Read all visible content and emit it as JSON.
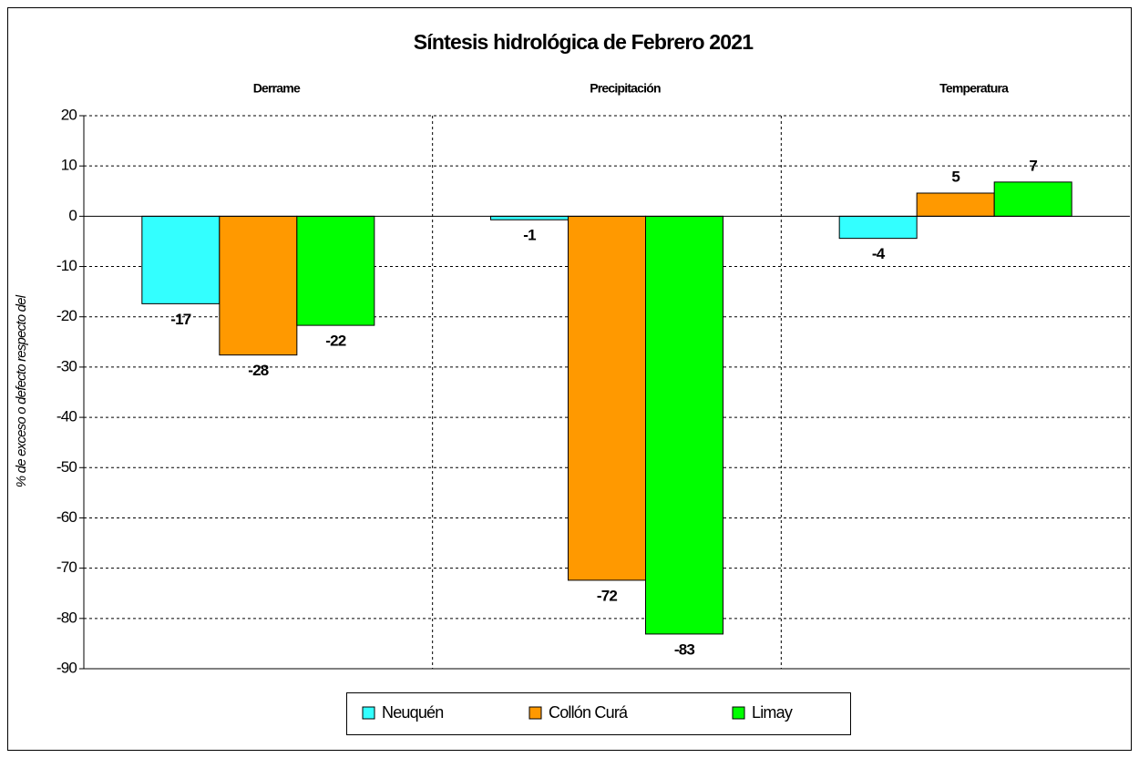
{
  "chart_data": {
    "type": "bar",
    "title": "Síntesis hidrológica de Febrero 2021",
    "y_label": "% de exceso o defecto respecto del",
    "categories": [
      "Derrame",
      "Precipitación",
      "Temperatura"
    ],
    "series": [
      {
        "name": "Neuquén",
        "color": "#33ffff",
        "label_color": "#000000",
        "values": [
          -17.4,
          -0.7,
          -4.4
        ],
        "value_labels": [
          "-17",
          "-1",
          "-4"
        ]
      },
      {
        "name": "Collón Curá",
        "color": "#ff9900",
        "label_color": "#1f4d1f",
        "values": [
          -27.6,
          -72.4,
          4.6
        ],
        "value_labels": [
          "-28",
          "-72",
          "5"
        ]
      },
      {
        "name": "Limay",
        "color": "#00ff00",
        "label_color": "#000000",
        "values": [
          -21.7,
          -83.1,
          6.8
        ],
        "value_labels": [
          "-22",
          "-83",
          "7"
        ]
      }
    ],
    "ylim": [
      -90,
      20
    ],
    "yticks": [
      -90,
      -80,
      -70,
      -60,
      -50,
      -40,
      -30,
      -20,
      -10,
      0,
      10,
      20
    ],
    "grid": true,
    "legend": "bottom"
  }
}
